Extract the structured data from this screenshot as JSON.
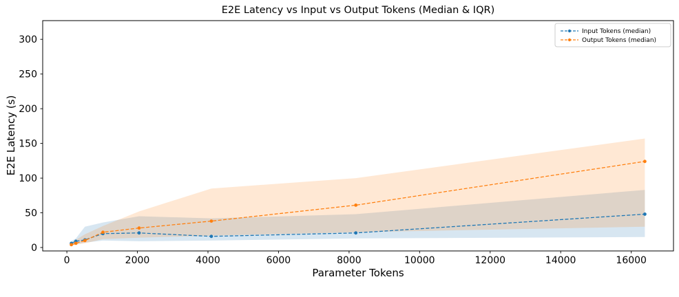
{
  "chart_data": {
    "type": "line",
    "title": "E2E Latency vs Input vs Output Tokens (Median & IQR)",
    "xlabel": "Parameter Tokens",
    "ylabel": "E2E Latency (s)",
    "grid": false,
    "legend_position": "upper right",
    "xlim": [
      -685,
      17197
    ],
    "ylim": [
      -5,
      327
    ],
    "xticks": [
      0,
      2000,
      4000,
      6000,
      8000,
      10000,
      12000,
      14000,
      16000
    ],
    "yticks": [
      0,
      50,
      100,
      150,
      200,
      250,
      300
    ],
    "x": [
      128,
      256,
      512,
      1024,
      2048,
      4096,
      8192,
      16384
    ],
    "band_opacity": 0.18,
    "series": [
      {
        "id": "input-tokens",
        "name": "Input Tokens (median)",
        "color": "#1f77b4",
        "median": [
          6,
          9,
          11,
          20,
          21,
          16,
          21,
          48
        ],
        "q1": [
          4,
          5,
          7,
          10,
          9,
          10,
          13,
          15
        ],
        "q3": [
          9,
          13,
          30,
          36,
          45,
          42,
          48,
          83
        ]
      },
      {
        "id": "output-tokens",
        "name": "Output Tokens (median)",
        "color": "#ff7f0e",
        "median": [
          4,
          6,
          10,
          22,
          28,
          38,
          61,
          124
        ],
        "q1": [
          2,
          4,
          6,
          12,
          14,
          17,
          22,
          30
        ],
        "q3": [
          7,
          11,
          19,
          31,
          52,
          85,
          100,
          157
        ]
      }
    ]
  }
}
